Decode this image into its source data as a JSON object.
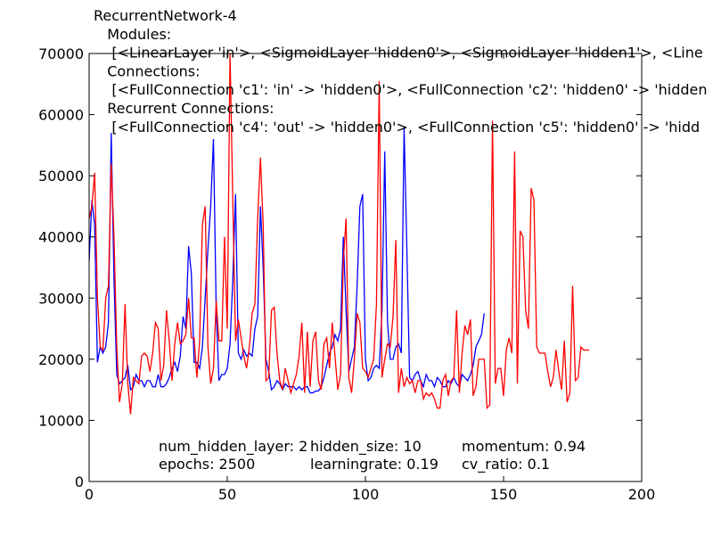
{
  "chart_data": {
    "type": "line",
    "title_lines": [
      "RecurrentNetwork-4",
      "   Modules:",
      "    [<LinearLayer 'in'>, <SigmoidLayer 'hidden0'>, <SigmoidLayer 'hidden1'>, <Line",
      "   Connections:",
      "    [<FullConnection 'c1': 'in' -> 'hidden0'>, <FullConnection 'c2': 'hidden0' -> 'hidden",
      "   Recurrent Connections:",
      "    [<FullConnection 'c4': 'out' -> 'hidden0'>, <FullConnection 'c5': 'hidden0' -> 'hidd"
    ],
    "xlim": [
      0,
      200
    ],
    "ylim": [
      0,
      70000
    ],
    "xticks": [
      "0",
      "50",
      "100",
      "150",
      "200"
    ],
    "yticks": [
      "0",
      "10000",
      "20000",
      "30000",
      "40000",
      "50000",
      "60000",
      "70000"
    ],
    "grid": false,
    "series": [
      {
        "color": "#0000ff",
        "x": [
          0,
          1,
          2,
          3,
          4,
          5,
          6,
          7,
          8,
          9,
          10,
          11,
          12,
          13,
          14,
          15,
          16,
          17,
          18,
          19,
          20,
          21,
          22,
          23,
          24,
          25,
          26,
          27,
          28,
          29,
          30,
          31,
          32,
          33,
          34,
          35,
          36,
          37,
          38,
          39,
          40,
          41,
          42,
          43,
          44,
          45,
          46,
          47,
          48,
          49,
          50,
          51,
          52,
          53,
          54,
          55,
          56,
          57,
          58,
          59,
          60,
          61,
          62,
          63,
          64,
          65,
          66,
          67,
          68,
          69,
          70,
          71,
          72,
          73,
          74,
          75,
          76,
          77,
          78,
          79,
          80,
          81,
          82,
          83,
          84,
          85,
          86,
          87,
          88,
          89,
          90,
          91,
          92,
          93,
          94,
          95,
          96,
          97,
          98,
          99,
          100,
          101,
          102,
          103,
          104,
          105,
          106,
          107,
          108,
          109,
          110,
          111,
          112,
          113,
          114,
          115,
          116,
          117,
          118,
          119,
          120,
          121,
          122,
          123,
          124,
          125,
          126,
          127,
          128,
          129,
          130,
          131,
          132,
          133,
          134,
          135,
          136,
          137,
          138,
          139,
          140,
          141,
          142,
          143
        ],
        "y": [
          36000,
          46000,
          42000,
          19500,
          22000,
          21000,
          22000,
          26000,
          57000,
          33000,
          17500,
          16000,
          16500,
          17000,
          19000,
          15000,
          15500,
          17500,
          16500,
          16500,
          15500,
          16500,
          16500,
          15500,
          15500,
          17500,
          15500,
          15500,
          16000,
          17000,
          18500,
          19500,
          18000,
          20500,
          27000,
          25000,
          38500,
          34000,
          19500,
          19500,
          18500,
          22000,
          30000,
          38000,
          45000,
          56000,
          28000,
          16500,
          17500,
          17500,
          18500,
          22500,
          33000,
          47000,
          21000,
          20000,
          21500,
          20500,
          21000,
          20500,
          25000,
          27000,
          45000,
          35000,
          20000,
          18000,
          15000,
          15500,
          16500,
          16000,
          15000,
          16000,
          15500,
          15500,
          15500,
          15000,
          15500,
          15000,
          15500,
          15500,
          14500,
          14500,
          14800,
          14800,
          15500,
          17000,
          19000,
          21000,
          22000,
          24000,
          23000,
          25000,
          40000,
          28000,
          18000,
          20000,
          22000,
          32000,
          45000,
          47000,
          20000,
          16500,
          17000,
          18500,
          19000,
          18500,
          28000,
          54000,
          26000,
          20000,
          20000,
          22000,
          22500,
          21000,
          58000,
          38000,
          17000,
          16500,
          17500,
          18000,
          16500,
          15500,
          17500,
          16500,
          16500,
          15500,
          17000,
          16500,
          15500,
          15500,
          16500,
          16000,
          17000,
          16000,
          15500,
          17500,
          17000,
          16500,
          17500,
          19000,
          22000,
          23000,
          24000,
          27500
        ]
      },
      {
        "color": "#ff0000",
        "x": [
          0,
          1,
          2,
          3,
          4,
          5,
          6,
          7,
          8,
          9,
          10,
          11,
          12,
          13,
          14,
          15,
          16,
          17,
          18,
          19,
          20,
          21,
          22,
          23,
          24,
          25,
          26,
          27,
          28,
          29,
          30,
          31,
          32,
          33,
          34,
          35,
          36,
          37,
          38,
          39,
          40,
          41,
          42,
          43,
          44,
          45,
          46,
          47,
          48,
          49,
          50,
          51,
          52,
          53,
          54,
          55,
          56,
          57,
          58,
          59,
          60,
          61,
          62,
          63,
          64,
          65,
          66,
          67,
          68,
          69,
          70,
          71,
          72,
          73,
          74,
          75,
          76,
          77,
          78,
          79,
          80,
          81,
          82,
          83,
          84,
          85,
          86,
          87,
          88,
          89,
          90,
          91,
          92,
          93,
          94,
          95,
          96,
          97,
          98,
          99,
          100,
          101,
          102,
          103,
          104,
          105,
          106,
          107,
          108,
          109,
          110,
          111,
          112,
          113,
          114,
          115,
          116,
          117,
          118,
          119,
          120,
          121,
          122,
          123,
          124,
          125,
          126,
          127,
          128,
          129,
          130,
          131,
          132,
          133,
          134,
          135,
          136,
          137,
          138,
          139,
          140,
          141,
          142,
          143,
          144,
          145,
          146,
          147,
          148,
          149,
          150,
          151,
          152,
          153,
          154,
          155,
          156,
          157,
          158,
          159,
          160,
          161,
          162,
          163,
          164,
          165,
          166,
          167,
          168,
          169,
          170,
          171,
          172,
          173,
          174,
          175,
          176,
          177,
          178,
          179,
          180,
          181
        ],
        "y": [
          43000,
          45000,
          50500,
          30000,
          22000,
          21500,
          30000,
          32000,
          52000,
          40000,
          22000,
          13000,
          16000,
          29000,
          16000,
          11000,
          17000,
          16500,
          16000,
          20500,
          21000,
          20500,
          18000,
          21000,
          26000,
          25000,
          16500,
          19000,
          28000,
          23000,
          16500,
          22500,
          26000,
          22500,
          23000,
          24000,
          30000,
          23500,
          23500,
          17000,
          23000,
          42000,
          45000,
          22000,
          16000,
          18500,
          29500,
          23000,
          23000,
          40000,
          25000,
          70000,
          46000,
          23000,
          26500,
          23500,
          20500,
          18500,
          22000,
          27500,
          29000,
          43000,
          53000,
          42000,
          16500,
          17000,
          28000,
          28500,
          21000,
          16500,
          15000,
          18500,
          16500,
          14500,
          16000,
          17500,
          20500,
          26000,
          14500,
          24500,
          15500,
          23000,
          24500,
          16500,
          15000,
          22500,
          23500,
          18500,
          26000,
          20500,
          15000,
          17500,
          36000,
          43000,
          17000,
          14500,
          20000,
          27500,
          26000,
          18500,
          18000,
          17000,
          18500,
          20000,
          29000,
          65500,
          17000,
          20000,
          22500,
          22000,
          27000,
          39500,
          14500,
          18500,
          15500,
          17000,
          16000,
          16500,
          14500,
          16500,
          16500,
          13500,
          14500,
          14000,
          14500,
          13500,
          12000,
          12000,
          16500,
          17500,
          14000,
          16500,
          17000,
          28000,
          14500,
          21000,
          25500,
          24000,
          26500,
          14000,
          15500,
          20000,
          20000,
          20000,
          12000,
          12500,
          59000,
          16000,
          18500,
          18500,
          14000,
          21500,
          23500,
          21000,
          54000,
          16000,
          41000,
          40000,
          28000,
          25000,
          48000,
          46000,
          22000,
          21000,
          21000,
          21000,
          18000,
          15500,
          17000,
          21500,
          18000,
          15000,
          23000,
          13000,
          14500,
          32000,
          16500,
          17000,
          22000,
          21500,
          21500,
          21500
        ]
      }
    ]
  },
  "params": {
    "num_hidden_layer": "num_hidden_layer: 2",
    "epochs": "epochs: 2500",
    "hidden_size": "hidden_size: 10",
    "learningrate": "learningrate: 0.19",
    "momentum": "momentum: 0.94",
    "cv_ratio": "cv_ratio: 0.1"
  }
}
